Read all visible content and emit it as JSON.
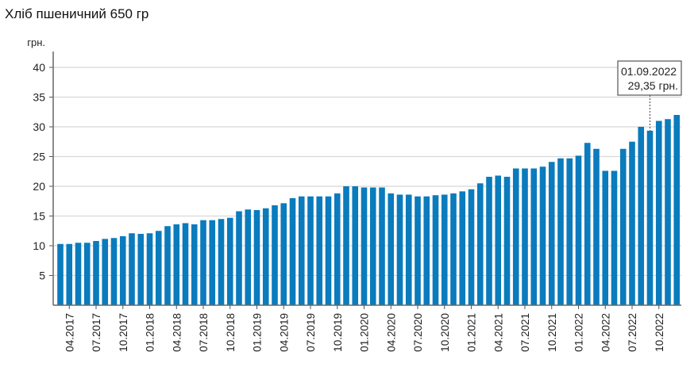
{
  "chart_data": {
    "type": "bar",
    "title": "Хліб пшеничний 650 гр",
    "ylabel": "грн.",
    "xlabel": "",
    "ylim": [
      0,
      40
    ],
    "yticks": [
      5,
      10,
      15,
      20,
      25,
      30,
      35,
      40
    ],
    "grid": true,
    "bar_color": "#0a7bbd",
    "start_month": "03.2017",
    "xtick_labels": [
      "04.2017",
      "07.2017",
      "10.2017",
      "01.2018",
      "04.2018",
      "07.2018",
      "10.2018",
      "01.2019",
      "04.2019",
      "07.2019",
      "10.2019",
      "01.2020",
      "04.2020",
      "07.2020",
      "10.2020",
      "01.2021",
      "04.2021",
      "07.2021",
      "10.2021",
      "01.2022",
      "04.2022",
      "07.2022",
      "10.2022"
    ],
    "values": [
      10.3,
      10.3,
      10.5,
      10.5,
      10.8,
      11.15,
      11.3,
      11.6,
      12.1,
      12.0,
      12.1,
      12.5,
      13.3,
      13.6,
      13.8,
      13.6,
      14.3,
      14.3,
      14.5,
      14.7,
      15.8,
      16.1,
      16.0,
      16.3,
      16.8,
      17.15,
      18.0,
      18.3,
      18.3,
      18.3,
      18.3,
      18.8,
      20.0,
      20.0,
      19.8,
      19.8,
      19.8,
      18.8,
      18.6,
      18.6,
      18.3,
      18.3,
      18.5,
      18.6,
      18.8,
      19.15,
      19.5,
      20.5,
      21.6,
      21.8,
      21.6,
      23.0,
      23.0,
      23.0,
      23.3,
      24.1,
      24.7,
      24.7,
      25.15,
      27.3,
      26.3,
      22.6,
      22.6,
      26.3,
      27.5,
      30.0,
      29.35,
      31.0,
      31.3,
      32.0
    ],
    "tooltip": {
      "index": 66,
      "date": "01.09.2022",
      "value_text": "29,35 грн."
    }
  }
}
